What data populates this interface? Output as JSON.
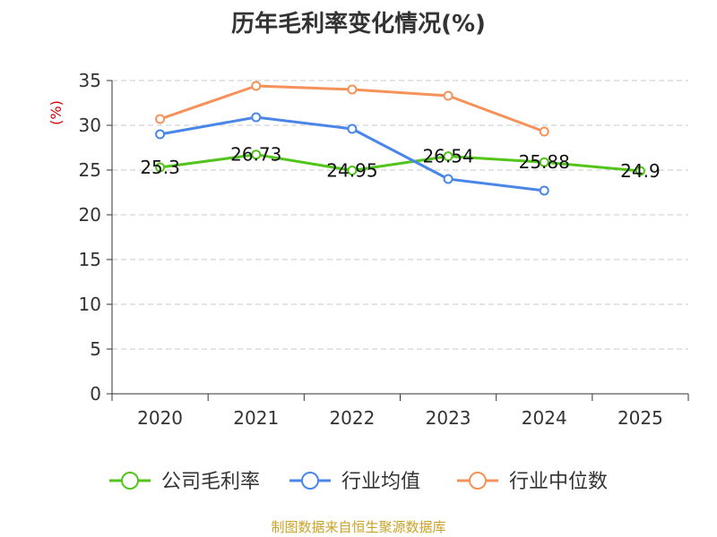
{
  "chart_data": {
    "type": "line",
    "title": "历年毛利率变化情况(%)",
    "ylabel": "(%)",
    "xlabel": "",
    "categories": [
      "2020",
      "2021",
      "2022",
      "2023",
      "2024",
      "2025"
    ],
    "ylim": [
      0,
      35
    ],
    "yticks": [
      0,
      5,
      10,
      15,
      20,
      25,
      30,
      35
    ],
    "grid": true,
    "legend_position": "bottom",
    "series": [
      {
        "name": "公司毛利率",
        "color": "#52c41a",
        "values": [
          25.3,
          26.73,
          24.95,
          26.54,
          25.88,
          24.9
        ],
        "labels": [
          "25.3",
          "26.73",
          "24.95",
          "26.54",
          "25.88",
          "24.9"
        ],
        "show_labels": true
      },
      {
        "name": "行业均值",
        "color": "#4a86e8",
        "values": [
          29.0,
          30.9,
          29.6,
          24.0,
          22.7,
          null
        ],
        "show_labels": false
      },
      {
        "name": "行业中位数",
        "color": "#f5925a",
        "values": [
          30.7,
          34.4,
          34.0,
          33.3,
          29.3,
          null
        ],
        "show_labels": false
      }
    ]
  },
  "source": "制图数据来自恒生聚源数据库"
}
